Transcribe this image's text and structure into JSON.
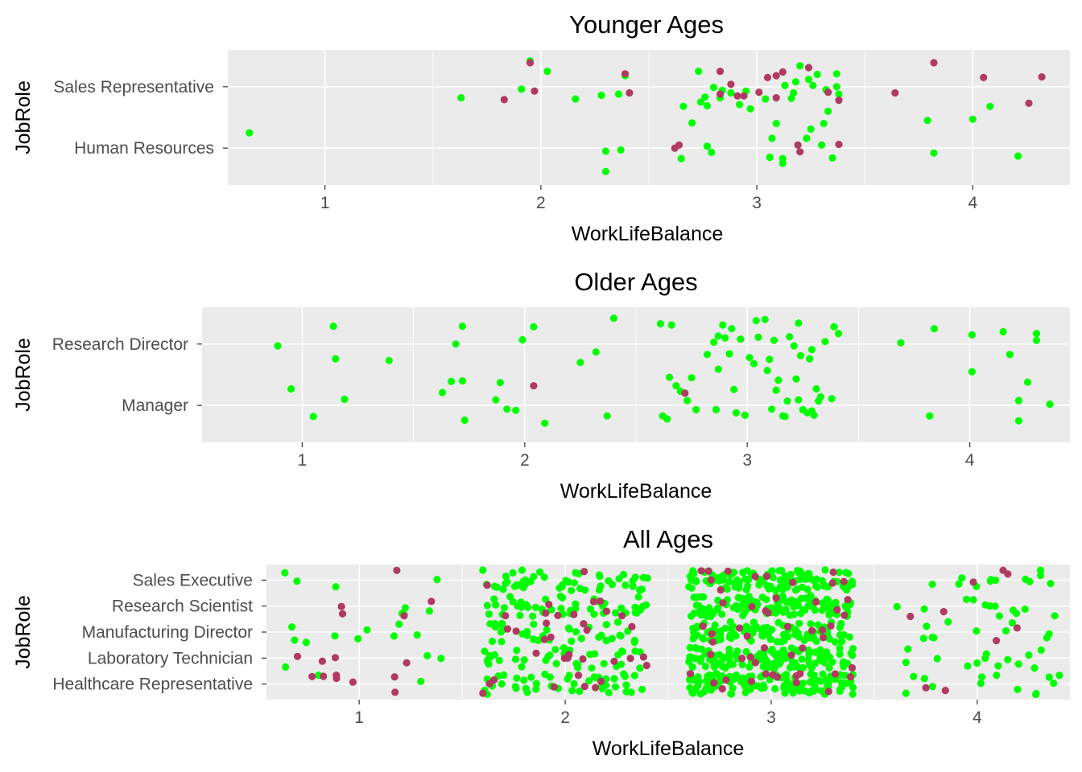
{
  "chart_data": [
    {
      "type": "scatter",
      "title": "Younger Ages",
      "xlabel": "WorkLifeBalance",
      "ylabel": "JobRole",
      "xlim": [
        0.55,
        4.45
      ],
      "x_ticks": [
        1,
        2,
        3,
        4
      ],
      "categories": [
        "Human Resources",
        "Sales Representative"
      ],
      "jitter": {
        "width": 0.4,
        "height": 0.4
      },
      "grid": true,
      "legend": "none",
      "series": [
        {
          "color": "#00ff00",
          "points": [
            [
              0.65,
              1.25
            ],
            [
              1.63,
              1.82
            ],
            [
              1.91,
              1.96
            ],
            [
              1.95,
              2.42
            ],
            [
              2.03,
              2.25
            ],
            [
              2.16,
              1.8
            ],
            [
              2.28,
              1.86
            ],
            [
              2.3,
              0.95
            ],
            [
              2.3,
              0.62
            ],
            [
              2.36,
              1.88
            ],
            [
              2.37,
              0.97
            ],
            [
              2.39,
              2.18
            ],
            [
              2.65,
              0.83
            ],
            [
              2.66,
              1.68
            ],
            [
              2.7,
              1.41
            ],
            [
              2.73,
              2.25
            ],
            [
              2.74,
              1.75
            ],
            [
              2.76,
              1.83
            ],
            [
              2.77,
              1.69
            ],
            [
              2.77,
              1.03
            ],
            [
              2.79,
              0.93
            ],
            [
              2.8,
              1.99
            ],
            [
              2.83,
              1.82
            ],
            [
              2.84,
              1.94
            ],
            [
              2.88,
              1.9
            ],
            [
              2.92,
              1.71
            ],
            [
              2.95,
              1.93
            ],
            [
              2.97,
              1.64
            ],
            [
              3.04,
              1.8
            ],
            [
              3.06,
              0.85
            ],
            [
              3.07,
              1.16
            ],
            [
              3.09,
              1.4
            ],
            [
              3.12,
              0.83
            ],
            [
              3.12,
              0.75
            ],
            [
              3.13,
              2.02
            ],
            [
              3.16,
              1.81
            ],
            [
              3.17,
              1.9
            ],
            [
              3.18,
              2.08
            ],
            [
              3.2,
              2.34
            ],
            [
              3.23,
              1.16
            ],
            [
              3.25,
              1.31
            ],
            [
              3.24,
              2.12
            ],
            [
              3.26,
              2.02
            ],
            [
              3.28,
              2.2
            ],
            [
              3.3,
              1.05
            ],
            [
              3.31,
              1.4
            ],
            [
              3.32,
              1.95
            ],
            [
              3.33,
              1.6
            ],
            [
              3.35,
              0.84
            ],
            [
              3.37,
              2.21
            ],
            [
              3.37,
              2.0
            ],
            [
              3.38,
              1.88
            ],
            [
              3.79,
              1.45
            ],
            [
              3.82,
              0.92
            ],
            [
              4.0,
              1.47
            ],
            [
              4.08,
              1.68
            ],
            [
              4.21,
              0.87
            ]
          ]
        },
        {
          "color": "#b03a62",
          "points": [
            [
              1.83,
              1.79
            ],
            [
              1.95,
              2.39
            ],
            [
              1.97,
              1.93
            ],
            [
              2.39,
              2.21
            ],
            [
              2.41,
              1.9
            ],
            [
              2.62,
              1.0
            ],
            [
              2.64,
              1.05
            ],
            [
              2.83,
              1.88
            ],
            [
              2.83,
              2.25
            ],
            [
              2.88,
              2.04
            ],
            [
              2.91,
              1.85
            ],
            [
              2.94,
              1.85
            ],
            [
              3.01,
              1.91
            ],
            [
              3.05,
              2.15
            ],
            [
              3.09,
              1.82
            ],
            [
              3.09,
              2.18
            ],
            [
              3.12,
              2.24
            ],
            [
              3.19,
              1.05
            ],
            [
              3.2,
              0.94
            ],
            [
              3.24,
              2.31
            ],
            [
              3.33,
              1.91
            ],
            [
              3.38,
              1.06
            ],
            [
              3.38,
              1.78
            ],
            [
              3.64,
              1.9
            ],
            [
              3.82,
              2.39
            ],
            [
              4.05,
              2.15
            ],
            [
              4.26,
              1.73
            ],
            [
              4.32,
              2.16
            ]
          ]
        }
      ]
    },
    {
      "type": "scatter",
      "title": "Older Ages",
      "xlabel": "WorkLifeBalance",
      "ylabel": "JobRole",
      "xlim": [
        0.55,
        4.45
      ],
      "x_ticks": [
        1,
        2,
        3,
        4
      ],
      "categories": [
        "Manager",
        "Research Director"
      ],
      "jitter": {
        "width": 0.4,
        "height": 0.4
      },
      "grid": true,
      "legend": "none",
      "series": [
        {
          "color": "#00ff00",
          "points": [
            [
              0.89,
              1.97
            ],
            [
              0.95,
              1.27
            ],
            [
              1.05,
              0.82
            ],
            [
              1.14,
              2.29
            ],
            [
              1.15,
              1.76
            ],
            [
              1.19,
              1.1
            ],
            [
              1.39,
              1.73
            ],
            [
              1.63,
              1.21
            ],
            [
              1.67,
              1.39
            ],
            [
              1.69,
              2.0
            ],
            [
              1.72,
              2.29
            ],
            [
              1.72,
              1.4
            ],
            [
              1.73,
              0.76
            ],
            [
              1.87,
              1.09
            ],
            [
              1.89,
              1.37
            ],
            [
              1.92,
              0.94
            ],
            [
              1.96,
              0.92
            ],
            [
              1.99,
              2.07
            ],
            [
              2.04,
              2.28
            ],
            [
              2.09,
              0.71
            ],
            [
              2.25,
              1.7
            ],
            [
              2.32,
              1.87
            ],
            [
              2.37,
              0.83
            ],
            [
              2.4,
              2.42
            ],
            [
              2.61,
              2.33
            ],
            [
              2.62,
              0.83
            ],
            [
              2.64,
              0.78
            ],
            [
              2.65,
              1.46
            ],
            [
              2.66,
              2.31
            ],
            [
              2.68,
              1.32
            ],
            [
              2.7,
              1.23
            ],
            [
              2.73,
              1.08
            ],
            [
              2.75,
              1.45
            ],
            [
              2.77,
              0.93
            ],
            [
              2.82,
              1.83
            ],
            [
              2.85,
              2.03
            ],
            [
              2.86,
              0.93
            ],
            [
              2.87,
              1.59
            ],
            [
              2.87,
              2.13
            ],
            [
              2.89,
              2.31
            ],
            [
              2.9,
              2.1
            ],
            [
              2.92,
              1.84
            ],
            [
              2.93,
              2.25
            ],
            [
              2.94,
              1.26
            ],
            [
              2.95,
              0.88
            ],
            [
              2.97,
              2.08
            ],
            [
              2.99,
              0.84
            ],
            [
              3.01,
              1.78
            ],
            [
              3.03,
              1.68
            ],
            [
              3.04,
              2.38
            ],
            [
              3.05,
              2.11
            ],
            [
              3.08,
              2.4
            ],
            [
              3.09,
              1.57
            ],
            [
              3.1,
              1.75
            ],
            [
              3.11,
              0.94
            ],
            [
              3.12,
              2.06
            ],
            [
              3.13,
              1.25
            ],
            [
              3.14,
              1.41
            ],
            [
              3.16,
              0.83
            ],
            [
              3.17,
              0.82
            ],
            [
              3.18,
              1.07
            ],
            [
              3.19,
              2.12
            ],
            [
              3.21,
              1.97
            ],
            [
              3.22,
              1.43
            ],
            [
              3.23,
              1.09
            ],
            [
              3.23,
              2.34
            ],
            [
              3.24,
              1.81
            ],
            [
              3.25,
              0.93
            ],
            [
              3.27,
              0.88
            ],
            [
              3.28,
              1.76
            ],
            [
              3.29,
              1.91
            ],
            [
              3.29,
              0.91
            ],
            [
              3.3,
              0.84
            ],
            [
              3.31,
              1.27
            ],
            [
              3.32,
              1.07
            ],
            [
              3.33,
              1.14
            ],
            [
              3.35,
              2.04
            ],
            [
              3.38,
              1.11
            ],
            [
              3.39,
              2.28
            ],
            [
              3.41,
              2.17
            ],
            [
              3.69,
              2.02
            ],
            [
              3.82,
              0.83
            ],
            [
              3.84,
              2.25
            ],
            [
              4.01,
              1.55
            ],
            [
              4.01,
              2.15
            ],
            [
              4.15,
              2.2
            ],
            [
              4.18,
              1.83
            ],
            [
              4.22,
              1.08
            ],
            [
              4.22,
              0.75
            ],
            [
              4.26,
              1.38
            ],
            [
              4.3,
              2.17
            ],
            [
              4.3,
              2.06
            ],
            [
              4.36,
              1.02
            ]
          ]
        },
        {
          "color": "#b03a62",
          "points": [
            [
              2.04,
              1.32
            ],
            [
              2.72,
              1.2
            ]
          ]
        }
      ]
    },
    {
      "type": "scatter",
      "title": "All Ages",
      "xlabel": "WorkLifeBalance",
      "ylabel": "JobRole",
      "xlim": [
        0.55,
        4.45
      ],
      "x_ticks": [
        1,
        2,
        3,
        4
      ],
      "categories": [
        "Healthcare Representative",
        "Laboratory Technician",
        "Manufacturing Director",
        "Research Scientist",
        "Sales Executive"
      ],
      "jitter": {
        "width": 0.4,
        "height": 0.4
      },
      "grid": true,
      "legend": "none",
      "series": [
        {
          "color": "#00ff00",
          "seed": 7,
          "clusters": [
            {
              "x_center": 1,
              "count": 22
            },
            {
              "x_center": 2,
              "count": 210
            },
            {
              "x_center": 3,
              "count": 560
            },
            {
              "x_center": 4,
              "count": 60
            }
          ]
        },
        {
          "color": "#b03a62",
          "seed": 11,
          "clusters": [
            {
              "x_center": 1,
              "count": 16
            },
            {
              "x_center": 2,
              "count": 36
            },
            {
              "x_center": 3,
              "count": 52
            },
            {
              "x_center": 4,
              "count": 9
            }
          ]
        }
      ]
    }
  ]
}
